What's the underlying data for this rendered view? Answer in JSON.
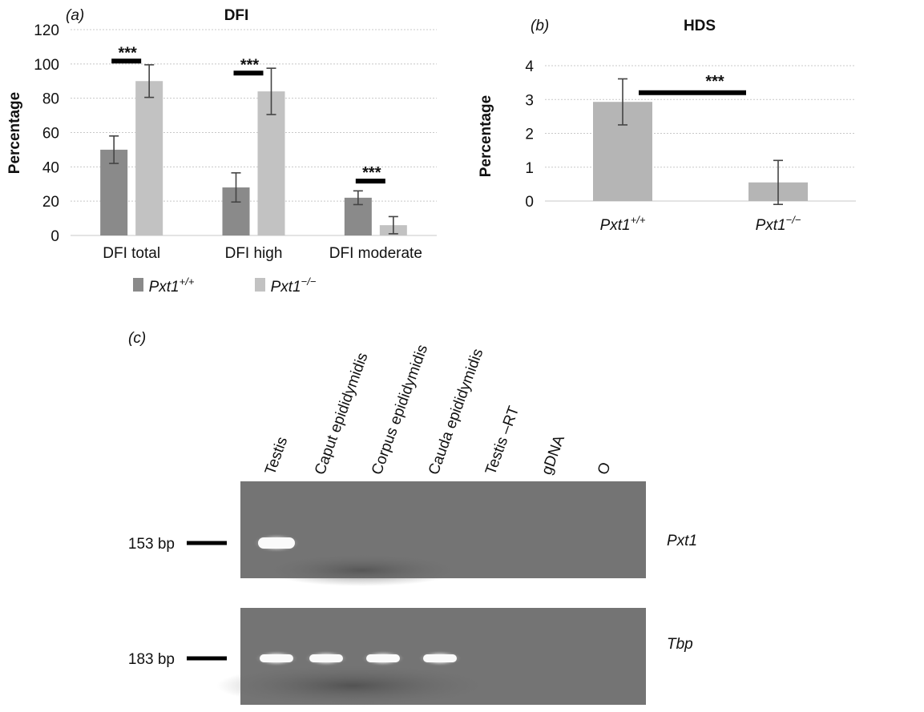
{
  "chart_data": [
    {
      "panel": "(a)",
      "type": "bar",
      "title": "DFI",
      "ylabel": "Percentage",
      "xlabel": "",
      "ylim": [
        0,
        120
      ],
      "yticks": [
        0,
        20,
        40,
        60,
        80,
        100,
        120
      ],
      "categories": [
        "DFI total",
        "DFI high",
        "DFI moderate"
      ],
      "series": [
        {
          "name": "Pxt1",
          "sup": "+/+",
          "color": "#8a8a8a",
          "values": [
            50,
            28,
            22
          ],
          "errors": [
            8,
            8.5,
            4
          ]
        },
        {
          "name": "Pxt1",
          "sup": "−/−",
          "color": "#c2c2c2",
          "values": [
            90,
            84,
            6
          ],
          "errors": [
            9.5,
            13.5,
            5
          ]
        }
      ],
      "significance": [
        {
          "category": "DFI total",
          "label": "***",
          "level": 97
        },
        {
          "category": "DFI high",
          "label": "***",
          "level": 90
        },
        {
          "category": "DFI moderate",
          "label": "***",
          "level": 27
        }
      ],
      "grid": true,
      "legend": "bottom"
    },
    {
      "panel": "(b)",
      "type": "bar",
      "title": "HDS",
      "ylabel": "Percentage",
      "xlabel": "",
      "ylim": [
        0,
        4
      ],
      "yticks": [
        0,
        1,
        2,
        3,
        4
      ],
      "categories": [
        {
          "name": "Pxt1",
          "sup": "+/+"
        },
        {
          "name": "Pxt1",
          "sup": "−/−"
        }
      ],
      "values": [
        2.93,
        0.55
      ],
      "errors": [
        0.68,
        0.65
      ],
      "color": "#b5b5b5",
      "significance": [
        {
          "label": "***",
          "level": 3.2
        }
      ],
      "grid": true
    }
  ],
  "gel": {
    "panel": "(c)",
    "lanes": [
      "Testis",
      "Caput epididymidis",
      "Corpus epididymidis",
      "Cauda epididymidis",
      "Testis –RT",
      "gDNA",
      "O"
    ],
    "rows": [
      {
        "gene": "Pxt1",
        "size_label": "153 bp",
        "bands": [
          1,
          0,
          0,
          0,
          0,
          0,
          0
        ]
      },
      {
        "gene": "Tbp",
        "size_label": "183 bp",
        "bands": [
          1,
          1,
          1,
          1,
          0,
          0,
          0
        ]
      }
    ]
  }
}
